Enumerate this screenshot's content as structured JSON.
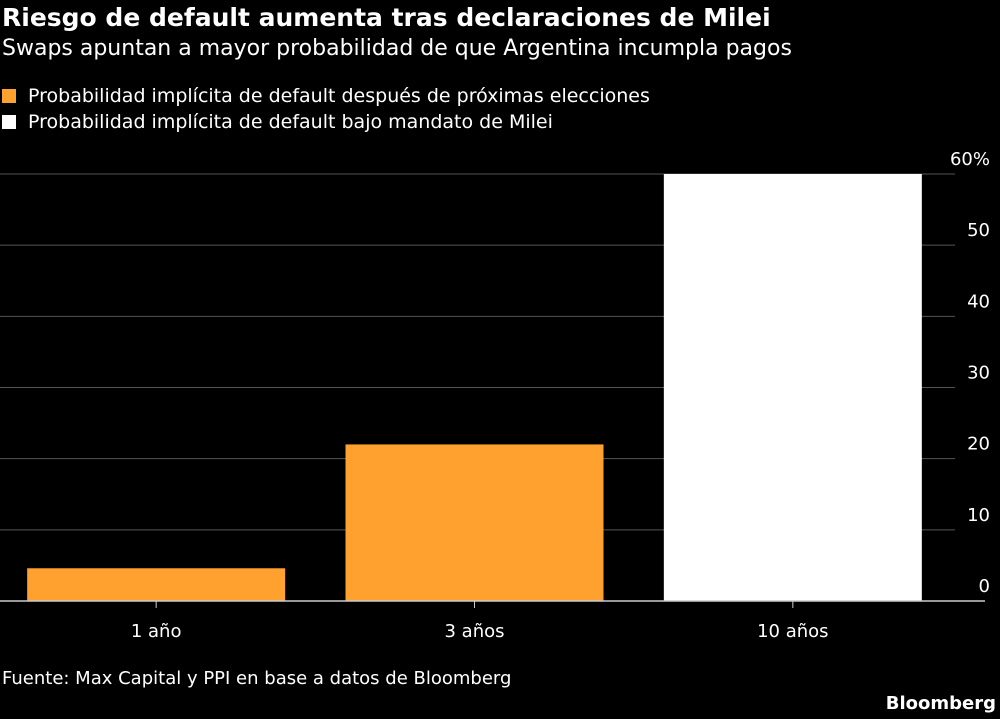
{
  "header": {
    "title": "Riesgo de default aumenta tras declaraciones de Milei",
    "subtitle": "Swaps apuntan a mayor probabilidad de que Argentina incumpla pagos"
  },
  "footer": {
    "source": "Fuente: Max Capital y PPI en base a datos de Bloomberg",
    "brand": "Bloomberg"
  },
  "colors": {
    "background": "#000000",
    "orange": "#ffa12e",
    "white": "#ffffff",
    "grid": "#555555",
    "axis": "#cccccc",
    "text": "#ffffff"
  },
  "chart_data": {
    "type": "bar",
    "title": "Riesgo de default aumenta tras declaraciones de Milei",
    "subtitle": "Swaps apuntan a mayor probabilidad de que Argentina incumpla pagos",
    "categories": [
      "1 año",
      "3 años",
      "10 años"
    ],
    "series": [
      {
        "name": "Probabilidad implícita de default después de próximas elecciones",
        "color": "#ffa12e",
        "values": [
          4.6,
          22,
          null
        ]
      },
      {
        "name": "Probabilidad implícita de default bajo mandato de Milei",
        "color": "#ffffff",
        "values": [
          null,
          null,
          60
        ]
      }
    ],
    "ylim": [
      0,
      60
    ],
    "yticks": [
      0,
      10,
      20,
      30,
      40,
      50,
      60
    ],
    "ytick_labels": [
      "0",
      "10",
      "20",
      "30",
      "40",
      "50",
      "60%"
    ],
    "grid": true,
    "yaxis_side": "right",
    "legend_position": "top-left",
    "xlabel": "",
    "ylabel": ""
  }
}
